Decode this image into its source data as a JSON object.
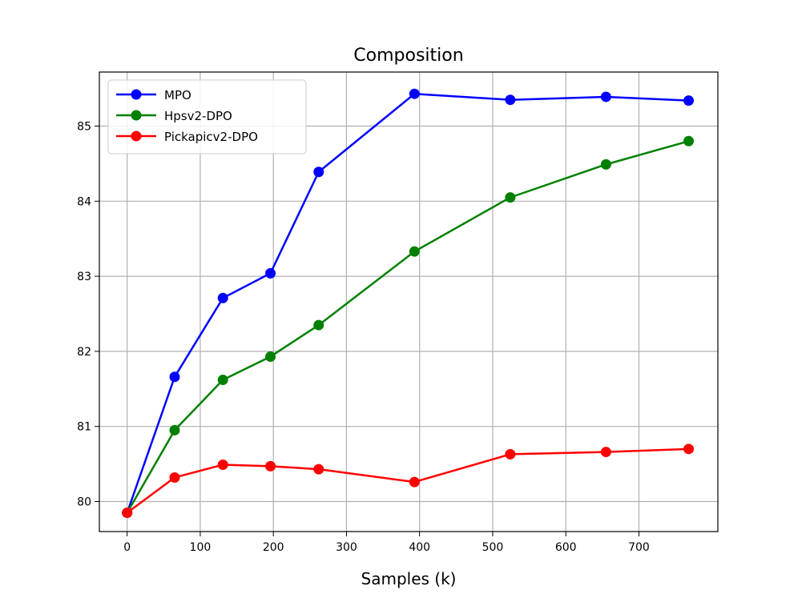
{
  "chart_data": {
    "type": "line",
    "title": "Composition",
    "xlabel": "Samples (k)",
    "ylabel": "",
    "xlim": [
      -38,
      808
    ],
    "ylim": [
      79.6,
      85.72
    ],
    "xticks": [
      0,
      100,
      200,
      300,
      400,
      500,
      600,
      700
    ],
    "yticks": [
      80,
      81,
      82,
      83,
      84,
      85
    ],
    "grid": true,
    "legend_position": "top-left",
    "series": [
      {
        "name": "MPO",
        "color": "#0000ff",
        "x": [
          0,
          65,
          131,
          196,
          262,
          393,
          524,
          655,
          768
        ],
        "y": [
          79.85,
          81.66,
          82.71,
          83.04,
          84.39,
          85.43,
          85.35,
          85.39,
          85.34
        ]
      },
      {
        "name": "Hpsv2-DPO",
        "color": "#008000",
        "x": [
          0,
          65,
          131,
          196,
          262,
          393,
          524,
          655,
          768
        ],
        "y": [
          79.85,
          80.95,
          81.62,
          81.93,
          82.35,
          83.33,
          84.05,
          84.49,
          84.8
        ]
      },
      {
        "name": "Pickapicv2-DPO",
        "color": "#ff0000",
        "x": [
          0,
          65,
          131,
          196,
          262,
          393,
          524,
          655,
          768
        ],
        "y": [
          79.85,
          80.32,
          80.49,
          80.47,
          80.43,
          80.26,
          80.63,
          80.66,
          80.7
        ]
      }
    ]
  }
}
